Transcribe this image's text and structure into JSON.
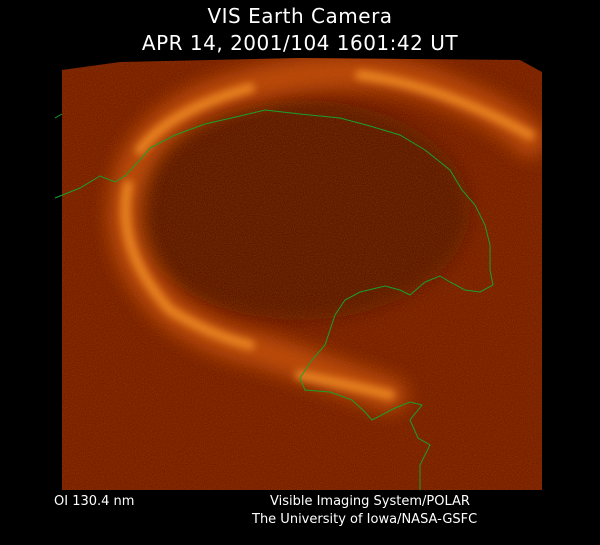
{
  "header": {
    "title": "VIS Earth Camera",
    "timestamp": "APR 14, 2001/104 1601:42 UT"
  },
  "image": {
    "subject": "auroral oval",
    "background_color": "#5a0a00",
    "aurora_color": "#ff9a30",
    "coastline_color": "#1aa02a"
  },
  "footer": {
    "wavelength": "OI  130.4 nm",
    "credit_line1": "Visible Imaging System/POLAR",
    "credit_line2": "The University of Iowa/NASA-GSFC"
  }
}
